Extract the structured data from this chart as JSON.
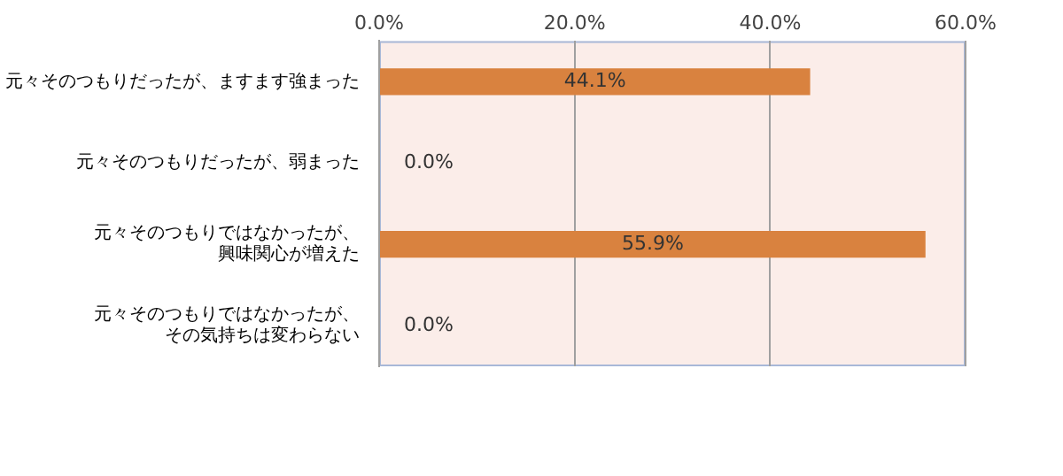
{
  "chart_data": {
    "type": "bar",
    "orientation": "horizontal",
    "categories": [
      "元々そのつもりだったが、ますます強まった",
      "元々そのつもりだったが、弱まった",
      "元々そのつもりではなかったが、興味関心が増えた",
      "元々そのつもりではなかったが、その気持ちは変わらない"
    ],
    "values": [
      44.1,
      0.0,
      55.9,
      0.0
    ],
    "value_labels": [
      "44.1%",
      "0.0%",
      "55.9%",
      "0.0%"
    ],
    "color": "#d9823f",
    "xlim": [
      0,
      60
    ],
    "xticks": [
      {
        "value": 0,
        "label": "0.0%"
      },
      {
        "value": 20,
        "label": "20.0%"
      },
      {
        "value": 40,
        "label": "40.0%"
      },
      {
        "value": 60,
        "label": "60.0%"
      }
    ],
    "grid": "x",
    "legend": false
  }
}
